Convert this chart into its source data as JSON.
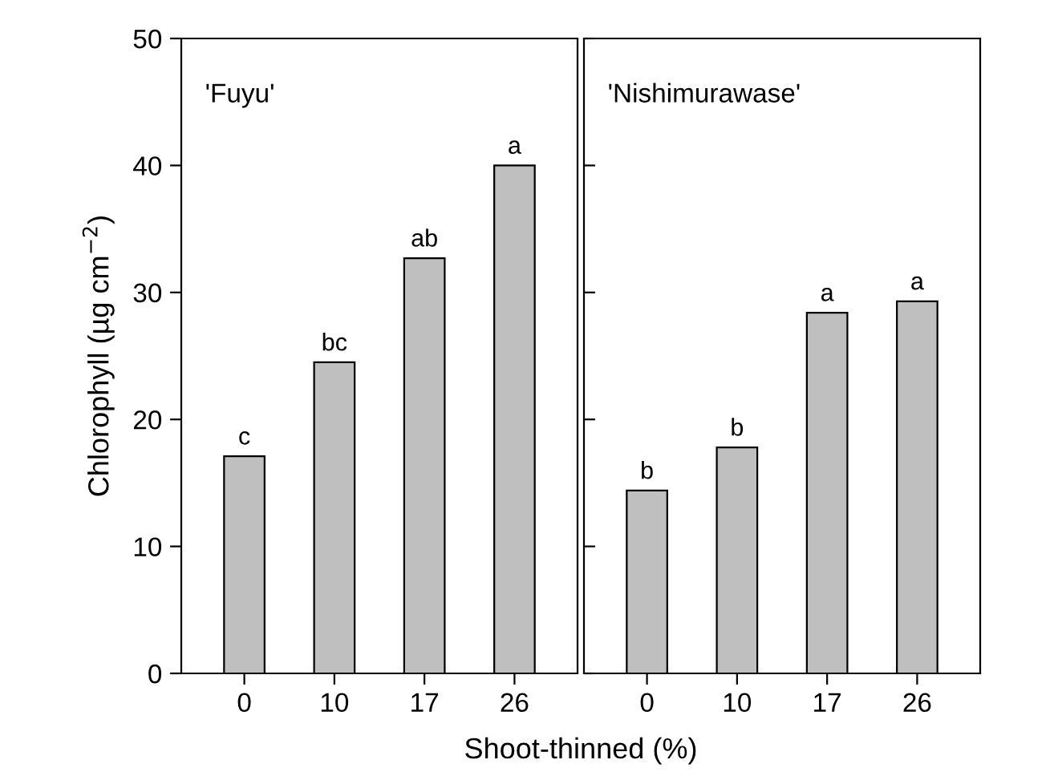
{
  "chart_data": [
    {
      "type": "bar",
      "categories": [
        "0",
        "10",
        "17",
        "26"
      ],
      "values": [
        17.1,
        24.5,
        32.7,
        40.0
      ],
      "color": "#bfbfbf",
      "ylim": [
        0,
        50
      ],
      "yticks": [
        0,
        10,
        20,
        30,
        40,
        50
      ],
      "ylabel": "Chlorophyll (µg cm$^{−2}$)",
      "xlabel": "Shoot-thinned (%)",
      "annotations": [
        "'Fuyu'",
        {
          "text": "c",
          "x": "0",
          "y": 17.1
        },
        {
          "text": "bc",
          "x": "10",
          "y": 24.5
        },
        {
          "text": "ab",
          "x": "17",
          "y": 32.7
        },
        {
          "text": "a",
          "x": "26",
          "y": 40.0
        }
      ]
    },
    {
      "type": "bar",
      "categories": [
        "0",
        "10",
        "17",
        "26"
      ],
      "values": [
        14.4,
        17.8,
        28.4,
        29.3
      ],
      "color": "#bfbfbf",
      "ylim": [
        0,
        50
      ],
      "yticks": [
        0,
        10,
        20,
        30,
        40,
        50
      ],
      "tick_labels": "x",
      "annotations": [
        "'Nishimurawase'",
        {
          "text": "b",
          "x": "0",
          "y": 14.4
        },
        {
          "text": "b",
          "x": "10",
          "y": 17.8
        },
        {
          "text": "a",
          "x": "17",
          "y": 28.4
        },
        {
          "text": "a",
          "x": "26",
          "y": 29.3
        }
      ]
    }
  ]
}
